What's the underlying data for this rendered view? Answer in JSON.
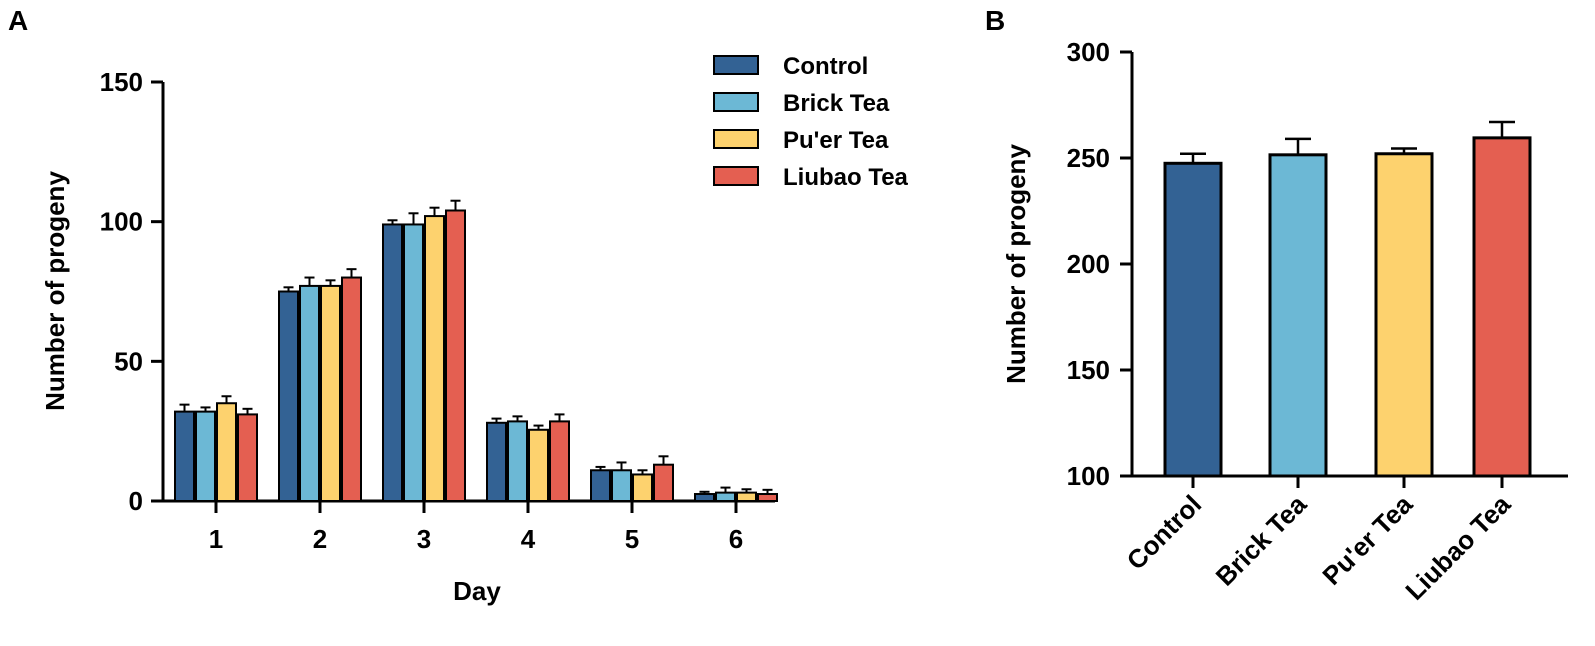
{
  "chart_data": [
    {
      "panel": "A",
      "type": "bar",
      "title": "",
      "xlabel": "Day",
      "ylabel": "Number of progeny",
      "ylim": [
        0,
        150
      ],
      "yticks": [
        0,
        50,
        100,
        150
      ],
      "categories": [
        "1",
        "2",
        "3",
        "4",
        "5",
        "6"
      ],
      "legend_position": "top-right",
      "series": [
        {
          "name": "Control",
          "color": "#336294",
          "values": [
            32,
            75,
            99,
            28,
            11,
            2.5
          ],
          "errors": [
            2.5,
            1.5,
            1.5,
            1.5,
            1.2,
            0.8
          ]
        },
        {
          "name": "Brick Tea",
          "color": "#6CB8D5",
          "values": [
            32,
            77,
            99,
            28.5,
            11,
            3
          ],
          "errors": [
            1.5,
            3,
            4,
            1.8,
            2.8,
            1.8
          ]
        },
        {
          "name": "Pu'er Tea",
          "color": "#FDD26E",
          "values": [
            35,
            77,
            102,
            25.5,
            9.5,
            3
          ],
          "errors": [
            2.5,
            2,
            3,
            1.5,
            1.5,
            1.2
          ]
        },
        {
          "name": "Liubao Tea",
          "color": "#E45F51",
          "values": [
            31,
            80,
            104,
            28.5,
            13,
            2.5
          ],
          "errors": [
            2,
            3,
            3.5,
            2.5,
            3,
            1.5
          ]
        }
      ]
    },
    {
      "panel": "B",
      "type": "bar",
      "title": "",
      "xlabel": "",
      "ylabel": "Number of progeny",
      "ylim": [
        100,
        300
      ],
      "yticks": [
        100,
        150,
        200,
        250,
        300
      ],
      "categories": [
        "Control",
        "Brick Tea",
        "Pu'er Tea",
        "Liubao Tea"
      ],
      "colors": [
        "#336294",
        "#6CB8D5",
        "#FDD26E",
        "#E45F51"
      ],
      "values": [
        247.5,
        251.5,
        252,
        259.5
      ],
      "errors": [
        4.5,
        7.5,
        2.5,
        7.5
      ]
    }
  ]
}
